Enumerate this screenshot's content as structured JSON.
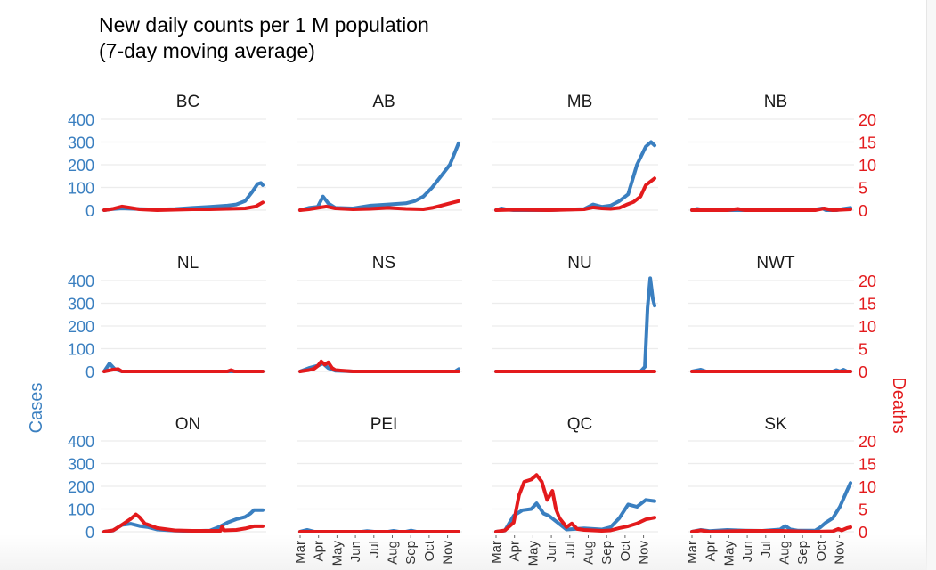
{
  "chart_data": {
    "type": "line",
    "title": [
      "New daily counts per 1 M population",
      "(7-day moving average)"
    ],
    "left_axis_label": "Cases",
    "right_axis_label": "Deaths",
    "left_axis_range": [
      0,
      400
    ],
    "right_axis_range": [
      0,
      20
    ],
    "left_ticks": [
      "0",
      "100",
      "200",
      "300",
      "400"
    ],
    "right_ticks": [
      "0",
      "5",
      "10",
      "15",
      "20"
    ],
    "x_ticks": [
      "Mar",
      "Apr",
      "May",
      "Jun",
      "Jul",
      "Aug",
      "Sep",
      "Oct",
      "Nov"
    ],
    "x_range_months": [
      0,
      9
    ],
    "grid": true,
    "layout": {
      "rows": 3,
      "cols": 4
    },
    "colors": {
      "cases": "#3a7fc0",
      "deaths": "#e31a1c"
    },
    "facets": [
      {
        "name": "BC",
        "cases": [
          [
            0,
            0
          ],
          [
            0.5,
            5
          ],
          [
            1,
            8
          ],
          [
            2,
            5
          ],
          [
            3,
            3
          ],
          [
            4,
            5
          ],
          [
            5,
            10
          ],
          [
            6,
            15
          ],
          [
            7,
            20
          ],
          [
            7.5,
            25
          ],
          [
            8,
            40
          ],
          [
            8.4,
            80
          ],
          [
            8.7,
            115
          ],
          [
            8.9,
            120
          ],
          [
            9,
            110
          ]
        ],
        "deaths": [
          [
            0,
            0
          ],
          [
            0.5,
            0.3
          ],
          [
            1,
            0.8
          ],
          [
            1.5,
            0.5
          ],
          [
            2,
            0.2
          ],
          [
            3,
            0
          ],
          [
            4,
            0.1
          ],
          [
            5,
            0.2
          ],
          [
            6,
            0.2
          ],
          [
            7,
            0.3
          ],
          [
            8,
            0.4
          ],
          [
            8.6,
            0.8
          ],
          [
            9,
            1.7
          ]
        ]
      },
      {
        "name": "AB",
        "cases": [
          [
            0,
            0
          ],
          [
            0.5,
            10
          ],
          [
            1,
            15
          ],
          [
            1.3,
            60
          ],
          [
            1.6,
            30
          ],
          [
            2,
            10
          ],
          [
            3,
            8
          ],
          [
            4,
            20
          ],
          [
            5,
            25
          ],
          [
            6,
            30
          ],
          [
            6.5,
            40
          ],
          [
            7,
            60
          ],
          [
            7.5,
            100
          ],
          [
            8,
            150
          ],
          [
            8.5,
            200
          ],
          [
            9,
            295
          ]
        ],
        "deaths": [
          [
            0,
            0
          ],
          [
            0.5,
            0.2
          ],
          [
            1,
            0.5
          ],
          [
            1.5,
            0.8
          ],
          [
            2,
            0.4
          ],
          [
            3,
            0.2
          ],
          [
            4,
            0.3
          ],
          [
            5,
            0.5
          ],
          [
            6,
            0.3
          ],
          [
            7,
            0.2
          ],
          [
            7.5,
            0.5
          ],
          [
            8,
            1
          ],
          [
            8.5,
            1.5
          ],
          [
            9,
            2
          ]
        ]
      },
      {
        "name": "MB",
        "cases": [
          [
            0,
            0
          ],
          [
            0.3,
            8
          ],
          [
            0.6,
            3
          ],
          [
            1,
            0
          ],
          [
            3,
            0
          ],
          [
            4,
            3
          ],
          [
            5,
            5
          ],
          [
            5.5,
            25
          ],
          [
            6,
            15
          ],
          [
            6.5,
            20
          ],
          [
            7,
            40
          ],
          [
            7.5,
            70
          ],
          [
            8,
            200
          ],
          [
            8.5,
            280
          ],
          [
            8.8,
            300
          ],
          [
            9,
            285
          ]
        ],
        "deaths": [
          [
            0,
            0
          ],
          [
            1,
            0.1
          ],
          [
            3,
            0
          ],
          [
            5,
            0.2
          ],
          [
            5.5,
            0.6
          ],
          [
            6,
            0.4
          ],
          [
            6.5,
            0.3
          ],
          [
            7,
            0.5
          ],
          [
            7.4,
            1.2
          ],
          [
            7.8,
            1.8
          ],
          [
            8.2,
            3
          ],
          [
            8.5,
            5.5
          ],
          [
            9,
            7
          ]
        ]
      },
      {
        "name": "NB",
        "cases": [
          [
            0,
            0
          ],
          [
            0.3,
            6
          ],
          [
            0.6,
            2
          ],
          [
            1,
            0
          ],
          [
            6,
            0
          ],
          [
            7,
            3
          ],
          [
            7.4,
            8
          ],
          [
            7.6,
            0
          ],
          [
            8.2,
            0
          ],
          [
            8.6,
            6
          ],
          [
            9,
            10
          ]
        ],
        "deaths": [
          [
            0,
            0
          ],
          [
            2,
            0
          ],
          [
            2.6,
            0.3
          ],
          [
            3,
            0
          ],
          [
            7,
            0
          ],
          [
            7.5,
            0.4
          ],
          [
            8,
            0
          ],
          [
            9,
            0.2
          ]
        ]
      },
      {
        "name": "NL",
        "cases": [
          [
            0,
            0
          ],
          [
            0.3,
            35
          ],
          [
            0.6,
            10
          ],
          [
            1,
            0
          ],
          [
            9,
            0
          ]
        ],
        "deaths": [
          [
            0,
            0
          ],
          [
            0.5,
            0.4
          ],
          [
            0.8,
            0.5
          ],
          [
            1,
            0
          ],
          [
            7,
            0
          ],
          [
            7.2,
            0.3
          ],
          [
            7.4,
            0
          ],
          [
            9,
            0
          ]
        ]
      },
      {
        "name": "NS",
        "cases": [
          [
            0,
            0
          ],
          [
            0.5,
            15
          ],
          [
            1,
            25
          ],
          [
            1.3,
            35
          ],
          [
            1.6,
            15
          ],
          [
            2,
            3
          ],
          [
            3,
            0
          ],
          [
            8.8,
            0
          ],
          [
            9,
            10
          ]
        ],
        "deaths": [
          [
            0,
            0
          ],
          [
            0.5,
            0.3
          ],
          [
            0.8,
            0.6
          ],
          [
            1,
            1.2
          ],
          [
            1.2,
            2.2
          ],
          [
            1.4,
            1.5
          ],
          [
            1.6,
            2
          ],
          [
            1.8,
            0.8
          ],
          [
            2,
            0.3
          ],
          [
            3,
            0
          ],
          [
            9,
            0
          ]
        ]
      },
      {
        "name": "NU",
        "cases": [
          [
            0,
            0
          ],
          [
            8.2,
            0
          ],
          [
            8.45,
            20
          ],
          [
            8.6,
            280
          ],
          [
            8.75,
            410
          ],
          [
            8.9,
            320
          ],
          [
            9,
            290
          ]
        ],
        "deaths": [
          [
            0,
            0
          ],
          [
            9,
            0
          ]
        ]
      },
      {
        "name": "NWT",
        "cases": [
          [
            0,
            0
          ],
          [
            0.5,
            8
          ],
          [
            0.8,
            0
          ],
          [
            8,
            0
          ],
          [
            8.2,
            6
          ],
          [
            8.4,
            0
          ],
          [
            8.6,
            8
          ],
          [
            8.8,
            0
          ],
          [
            9,
            0
          ]
        ],
        "deaths": [
          [
            0,
            0
          ],
          [
            9,
            0
          ]
        ]
      },
      {
        "name": "ON",
        "cases": [
          [
            0,
            0
          ],
          [
            0.5,
            5
          ],
          [
            1,
            30
          ],
          [
            1.5,
            35
          ],
          [
            2,
            25
          ],
          [
            2.5,
            20
          ],
          [
            3,
            10
          ],
          [
            4,
            5
          ],
          [
            5,
            3
          ],
          [
            6,
            5
          ],
          [
            6.5,
            20
          ],
          [
            7,
            40
          ],
          [
            7.5,
            55
          ],
          [
            8,
            65
          ],
          [
            8.3,
            80
          ],
          [
            8.5,
            95
          ],
          [
            9,
            95
          ]
        ],
        "deaths": [
          [
            0,
            0
          ],
          [
            0.5,
            0.3
          ],
          [
            1,
            1.5
          ],
          [
            1.5,
            2.8
          ],
          [
            1.8,
            3.8
          ],
          [
            2,
            3.2
          ],
          [
            2.3,
            1.8
          ],
          [
            3,
            0.8
          ],
          [
            4,
            0.3
          ],
          [
            5,
            0.2
          ],
          [
            6,
            0.2
          ],
          [
            6.6,
            0.2
          ],
          [
            6.7,
            1.2
          ],
          [
            6.8,
            0.3
          ],
          [
            7.5,
            0.4
          ],
          [
            8,
            0.7
          ],
          [
            8.5,
            1.2
          ],
          [
            9,
            1.2
          ]
        ]
      },
      {
        "name": "PEI",
        "cases": [
          [
            0,
            0
          ],
          [
            0.4,
            8
          ],
          [
            0.8,
            0
          ],
          [
            3.5,
            0
          ],
          [
            3.8,
            3
          ],
          [
            4.2,
            0
          ],
          [
            5,
            0
          ],
          [
            5.3,
            4
          ],
          [
            5.6,
            0
          ],
          [
            6,
            0
          ],
          [
            6.3,
            5
          ],
          [
            6.6,
            0
          ],
          [
            9,
            0
          ]
        ],
        "deaths": [
          [
            0,
            0
          ],
          [
            9,
            0
          ]
        ]
      },
      {
        "name": "QC",
        "cases": [
          [
            0,
            0
          ],
          [
            0.5,
            5
          ],
          [
            1,
            70
          ],
          [
            1.5,
            95
          ],
          [
            2,
            100
          ],
          [
            2.3,
            125
          ],
          [
            2.7,
            80
          ],
          [
            3,
            70
          ],
          [
            3.5,
            40
          ],
          [
            4,
            10
          ],
          [
            5,
            15
          ],
          [
            6,
            10
          ],
          [
            6.5,
            20
          ],
          [
            7,
            60
          ],
          [
            7.5,
            120
          ],
          [
            8,
            110
          ],
          [
            8.5,
            140
          ],
          [
            9,
            135
          ]
        ],
        "deaths": [
          [
            0,
            0
          ],
          [
            0.5,
            0.3
          ],
          [
            1,
            2
          ],
          [
            1.3,
            8
          ],
          [
            1.6,
            11
          ],
          [
            2,
            11.5
          ],
          [
            2.3,
            12.5
          ],
          [
            2.6,
            11
          ],
          [
            2.9,
            7
          ],
          [
            3.2,
            9
          ],
          [
            3.4,
            5
          ],
          [
            3.6,
            3
          ],
          [
            4,
            1
          ],
          [
            4.3,
            1.8
          ],
          [
            4.6,
            0.6
          ],
          [
            5,
            0.4
          ],
          [
            6,
            0.2
          ],
          [
            6.5,
            0.3
          ],
          [
            7,
            0.8
          ],
          [
            7.5,
            1.2
          ],
          [
            8,
            1.8
          ],
          [
            8.5,
            2.7
          ],
          [
            9,
            3.1
          ]
        ]
      },
      {
        "name": "SK",
        "cases": [
          [
            0,
            0
          ],
          [
            0.5,
            8
          ],
          [
            1,
            3
          ],
          [
            2,
            8
          ],
          [
            3,
            5
          ],
          [
            4,
            4
          ],
          [
            5,
            10
          ],
          [
            5.3,
            25
          ],
          [
            5.6,
            10
          ],
          [
            6,
            5
          ],
          [
            7,
            5
          ],
          [
            7.3,
            20
          ],
          [
            7.6,
            40
          ],
          [
            8,
            60
          ],
          [
            8.4,
            110
          ],
          [
            8.8,
            180
          ],
          [
            9,
            215
          ]
        ],
        "deaths": [
          [
            0,
            0
          ],
          [
            0.5,
            0.3
          ],
          [
            1,
            0
          ],
          [
            3,
            0.2
          ],
          [
            5,
            0.2
          ],
          [
            7,
            0
          ],
          [
            8,
            0.1
          ],
          [
            8.3,
            0.6
          ],
          [
            8.5,
            0.3
          ],
          [
            8.8,
            0.8
          ],
          [
            9,
            1
          ]
        ]
      }
    ]
  }
}
